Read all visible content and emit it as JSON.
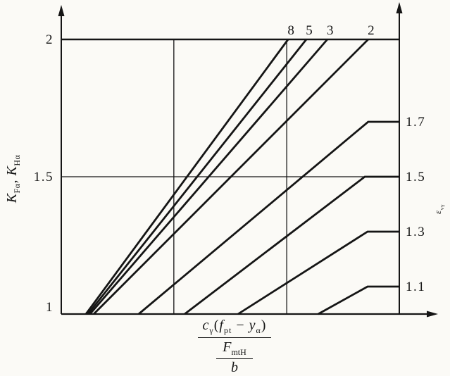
{
  "figure": {
    "background": "#fbfaf6",
    "ink": "#151515"
  },
  "chart_data": {
    "type": "line",
    "title": "",
    "legend": "none",
    "grid": "partial",
    "y_axis": {
      "label_parts": [
        {
          "i": "K"
        },
        {
          "sub": "Fα"
        },
        {
          "t": ", "
        },
        {
          "i": "K"
        },
        {
          "sub": "Hα"
        }
      ],
      "min": 1,
      "max": 2,
      "ticks": [
        {
          "v": 2,
          "label": "2"
        },
        {
          "v": 1.5,
          "label": "1.5"
        },
        {
          "v": 1,
          "label": "1"
        }
      ]
    },
    "right_axis": {
      "label_parts": [
        {
          "i": "ε"
        },
        {
          "sub": "vγ"
        }
      ]
    },
    "x_axis": {
      "label_fraction": {
        "numerator": [
          {
            "i": "c"
          },
          {
            "sub": "γ"
          },
          {
            "t": "("
          },
          {
            "i": "f"
          },
          {
            "sub": "pt"
          },
          {
            "t": " − "
          },
          {
            "i": "y"
          },
          {
            "sub": "α"
          },
          {
            "t": ")"
          }
        ],
        "middle": [
          {
            "i": "F"
          },
          {
            "sub": "mtH"
          }
        ],
        "denominator": [
          {
            "i": "b"
          }
        ]
      },
      "min": 0,
      "max": 1,
      "gridlines": [
        0.333,
        0.667
      ],
      "tick_labels": []
    },
    "horizontal_gridlines": [
      1.5,
      2
    ],
    "series": [
      {
        "label": "8",
        "label_position": "top",
        "points": [
          [
            0.073,
            1
          ],
          [
            0.671,
            2
          ]
        ]
      },
      {
        "label": "5",
        "label_position": "top",
        "points": [
          [
            0.079,
            1
          ],
          [
            0.725,
            2
          ]
        ]
      },
      {
        "label": "3",
        "label_position": "top",
        "points": [
          [
            0.085,
            1
          ],
          [
            0.787,
            2
          ]
        ]
      },
      {
        "label": "2",
        "label_position": "top",
        "points": [
          [
            0.096,
            1
          ],
          [
            0.908,
            2
          ]
        ]
      },
      {
        "label": "1.7",
        "label_position": "right",
        "points": [
          [
            0.229,
            1
          ],
          [
            0.908,
            1.7
          ],
          [
            1,
            1.7
          ]
        ]
      },
      {
        "label": "1.5",
        "label_position": "right",
        "points": [
          [
            0.365,
            1
          ],
          [
            0.898,
            1.5
          ],
          [
            1,
            1.5
          ]
        ]
      },
      {
        "label": "1.3",
        "label_position": "right",
        "points": [
          [
            0.523,
            1
          ],
          [
            0.906,
            1.3
          ],
          [
            1,
            1.3
          ]
        ]
      },
      {
        "label": "1.1",
        "label_position": "right",
        "points": [
          [
            0.76,
            1
          ],
          [
            0.906,
            1.1
          ],
          [
            1,
            1.1
          ]
        ]
      }
    ]
  }
}
